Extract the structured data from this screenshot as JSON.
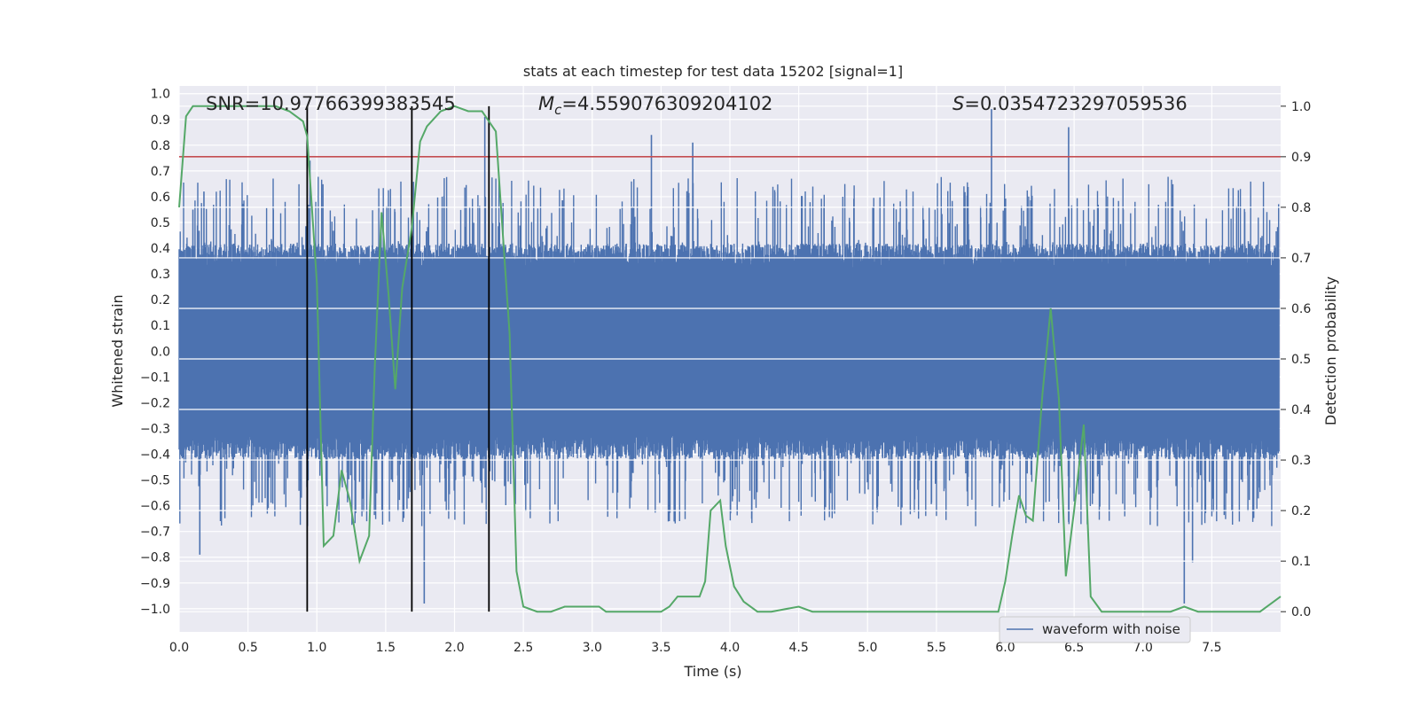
{
  "chart_data": {
    "type": "line",
    "title": "stats at each timestep for test data 15202 [signal=1]",
    "xlabel": "Time (s)",
    "ylabel": "Whitened strain",
    "y2label": "Detection probability",
    "xlim": [
      0.0,
      8.0
    ],
    "ylim": [
      -1.09,
      1.03
    ],
    "y2lim": [
      -0.04,
      1.04
    ],
    "xticks": [
      "0.0",
      "0.5",
      "1.0",
      "1.5",
      "2.0",
      "2.5",
      "3.0",
      "3.5",
      "4.0",
      "4.5",
      "5.0",
      "5.5",
      "6.0",
      "6.5",
      "7.0",
      "7.5"
    ],
    "xtick_values": [
      0.0,
      0.5,
      1.0,
      1.5,
      2.0,
      2.5,
      3.0,
      3.5,
      4.0,
      4.5,
      5.0,
      5.5,
      6.0,
      6.5,
      7.0,
      7.5
    ],
    "yticks": [
      "1.0",
      "0.9",
      "0.8",
      "0.7",
      "0.6",
      "0.5",
      "0.4",
      "0.3",
      "0.2",
      "0.1",
      "0.0",
      "−0.1",
      "−0.2",
      "−0.3",
      "−0.4",
      "−0.5",
      "−0.6",
      "−0.7",
      "−0.8",
      "−0.9",
      "−1.0"
    ],
    "ytick_values": [
      1.0,
      0.9,
      0.8,
      0.7,
      0.6,
      0.5,
      0.4,
      0.3,
      0.2,
      0.1,
      0.0,
      -0.1,
      -0.2,
      -0.3,
      -0.4,
      -0.5,
      -0.6,
      -0.7,
      -0.8,
      -0.9,
      -1.0
    ],
    "y2ticks": [
      "1.0",
      "0.9",
      "0.8",
      "0.7",
      "0.6",
      "0.5",
      "0.4",
      "0.3",
      "0.2",
      "0.1",
      "0.0"
    ],
    "y2tick_values": [
      1.0,
      0.9,
      0.8,
      0.7,
      0.6,
      0.5,
      0.4,
      0.3,
      0.2,
      0.1,
      0.0
    ],
    "annotations": {
      "snr": "SNR=10.97766399383545",
      "mc_symbol": "M",
      "mc_sub": "c",
      "mc_value": "=4.559076309204102",
      "s_symbol": "S",
      "s_value": "=0.0354723297059536"
    },
    "legend": {
      "label": "waveform with noise",
      "placement": "lower-right"
    },
    "threshold_probability": 0.9,
    "vertical_lines_x": [
      0.93,
      1.69,
      2.25
    ],
    "waveform_envelope": {
      "typical_abs_strain": 0.38,
      "max_strain": 0.94,
      "min_strain": -0.98
    },
    "waveform_peaks": [
      {
        "x": 0.1,
        "y": 0.55
      },
      {
        "x": 0.15,
        "y": -0.79
      },
      {
        "x": 0.18,
        "y": 0.62
      },
      {
        "x": 0.3,
        "y": -0.66
      },
      {
        "x": 0.95,
        "y": 0.74
      },
      {
        "x": 1.78,
        "y": -0.98
      },
      {
        "x": 2.22,
        "y": 0.91
      },
      {
        "x": 3.43,
        "y": 0.84
      },
      {
        "x": 3.73,
        "y": 0.81
      },
      {
        "x": 5.9,
        "y": 0.94
      },
      {
        "x": 6.46,
        "y": 0.87
      },
      {
        "x": 7.3,
        "y": -0.98
      },
      {
        "x": 7.36,
        "y": -0.82
      }
    ],
    "series": [
      {
        "name": "detection probability",
        "color": "#55a868",
        "x": [
          0.0,
          0.05,
          0.1,
          0.2,
          0.3,
          0.5,
          0.6,
          0.7,
          0.8,
          0.9,
          0.93,
          1.0,
          1.05,
          1.12,
          1.18,
          1.24,
          1.31,
          1.38,
          1.42,
          1.47,
          1.52,
          1.57,
          1.62,
          1.69,
          1.75,
          1.8,
          1.9,
          2.0,
          2.1,
          2.2,
          2.25,
          2.3,
          2.4,
          2.45,
          2.5,
          2.6,
          2.7,
          2.8,
          2.9,
          3.0,
          3.05,
          3.1,
          3.2,
          3.5,
          3.56,
          3.62,
          3.7,
          3.78,
          3.82,
          3.86,
          3.93,
          3.97,
          4.03,
          4.1,
          4.2,
          4.3,
          4.5,
          4.6,
          4.7,
          4.8,
          5.0,
          5.5,
          5.9,
          5.95,
          6.0,
          6.05,
          6.1,
          6.15,
          6.2,
          6.27,
          6.33,
          6.39,
          6.44,
          6.5,
          6.57,
          6.62,
          6.7,
          6.8,
          6.9,
          7.0,
          7.2,
          7.3,
          7.4,
          7.5,
          7.7,
          7.85,
          7.95,
          8.0
        ],
        "values": [
          0.8,
          0.98,
          1.0,
          1.0,
          1.0,
          1.0,
          1.0,
          1.0,
          0.99,
          0.97,
          0.94,
          0.65,
          0.13,
          0.15,
          0.28,
          0.22,
          0.1,
          0.15,
          0.48,
          0.79,
          0.63,
          0.44,
          0.64,
          0.76,
          0.93,
          0.96,
          0.99,
          1.0,
          0.99,
          0.99,
          0.97,
          0.95,
          0.55,
          0.08,
          0.01,
          0.0,
          0.0,
          0.01,
          0.01,
          0.01,
          0.01,
          0.0,
          0.0,
          0.0,
          0.01,
          0.03,
          0.03,
          0.03,
          0.06,
          0.2,
          0.22,
          0.13,
          0.05,
          0.02,
          0.0,
          0.0,
          0.01,
          0.0,
          0.0,
          0.0,
          0.0,
          0.0,
          0.0,
          0.0,
          0.06,
          0.15,
          0.23,
          0.19,
          0.18,
          0.43,
          0.6,
          0.42,
          0.07,
          0.2,
          0.37,
          0.03,
          0.0,
          0.0,
          0.0,
          0.0,
          0.0,
          0.01,
          0.0,
          0.0,
          0.0,
          0.0,
          0.02,
          0.03
        ]
      }
    ],
    "colors": {
      "waveform": "#4c72b0",
      "probability": "#55a868",
      "threshold": "#c44e52",
      "vline": "#000000",
      "axes_bg": "#eaeaf2",
      "grid": "#ffffff"
    }
  }
}
